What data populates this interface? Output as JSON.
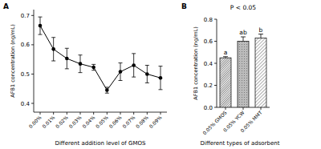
{
  "chart_data": [
    {
      "type": "line",
      "panel": "A",
      "x_label": "Different addition level of GMOS",
      "y_label": "AFB1 concentration (ng/mL)",
      "categories": [
        "0.00%",
        "0.01%",
        "0.02%",
        "0.03%",
        "0.04%",
        "0.05%",
        "0.06%",
        "0.07%",
        "0.08%",
        "0.09%"
      ],
      "values": [
        0.665,
        0.585,
        0.553,
        0.535,
        0.523,
        0.445,
        0.508,
        0.53,
        0.5,
        0.487
      ],
      "errors": [
        0.03,
        0.04,
        0.035,
        0.03,
        0.01,
        0.01,
        0.03,
        0.04,
        0.03,
        0.04
      ],
      "color": "#000000",
      "marker": "circle",
      "ylim": [
        0.37,
        0.72
      ],
      "yticks": [
        0.4,
        0.5,
        0.6,
        0.7
      ],
      "grid": false
    },
    {
      "type": "bar",
      "panel": "B",
      "title": "P < 0.05",
      "x_label": "Different types of adsorbent",
      "y_label": "AFB1 concentration (ng/mL)",
      "categories": [
        "0.05% GMOS",
        "0.05% YCW",
        "0.05% MMT"
      ],
      "values": [
        0.45,
        0.6,
        0.63
      ],
      "errors": [
        0.01,
        0.04,
        0.035
      ],
      "letters": [
        "a",
        "ab",
        "b"
      ],
      "colors": [
        "#555555",
        "#bbbbbb",
        "#777777"
      ],
      "ylim": [
        0,
        0.8
      ],
      "yticks": [
        {
          "value": 0,
          "label": "0.0"
        },
        {
          "value": 0.2,
          "label": "0.2"
        },
        {
          "value": 0.4,
          "label": "0.4"
        },
        {
          "value": 0.6,
          "label": "0.6"
        },
        {
          "value": 0.8,
          "label": "0.8"
        }
      ],
      "grid": false
    }
  ]
}
